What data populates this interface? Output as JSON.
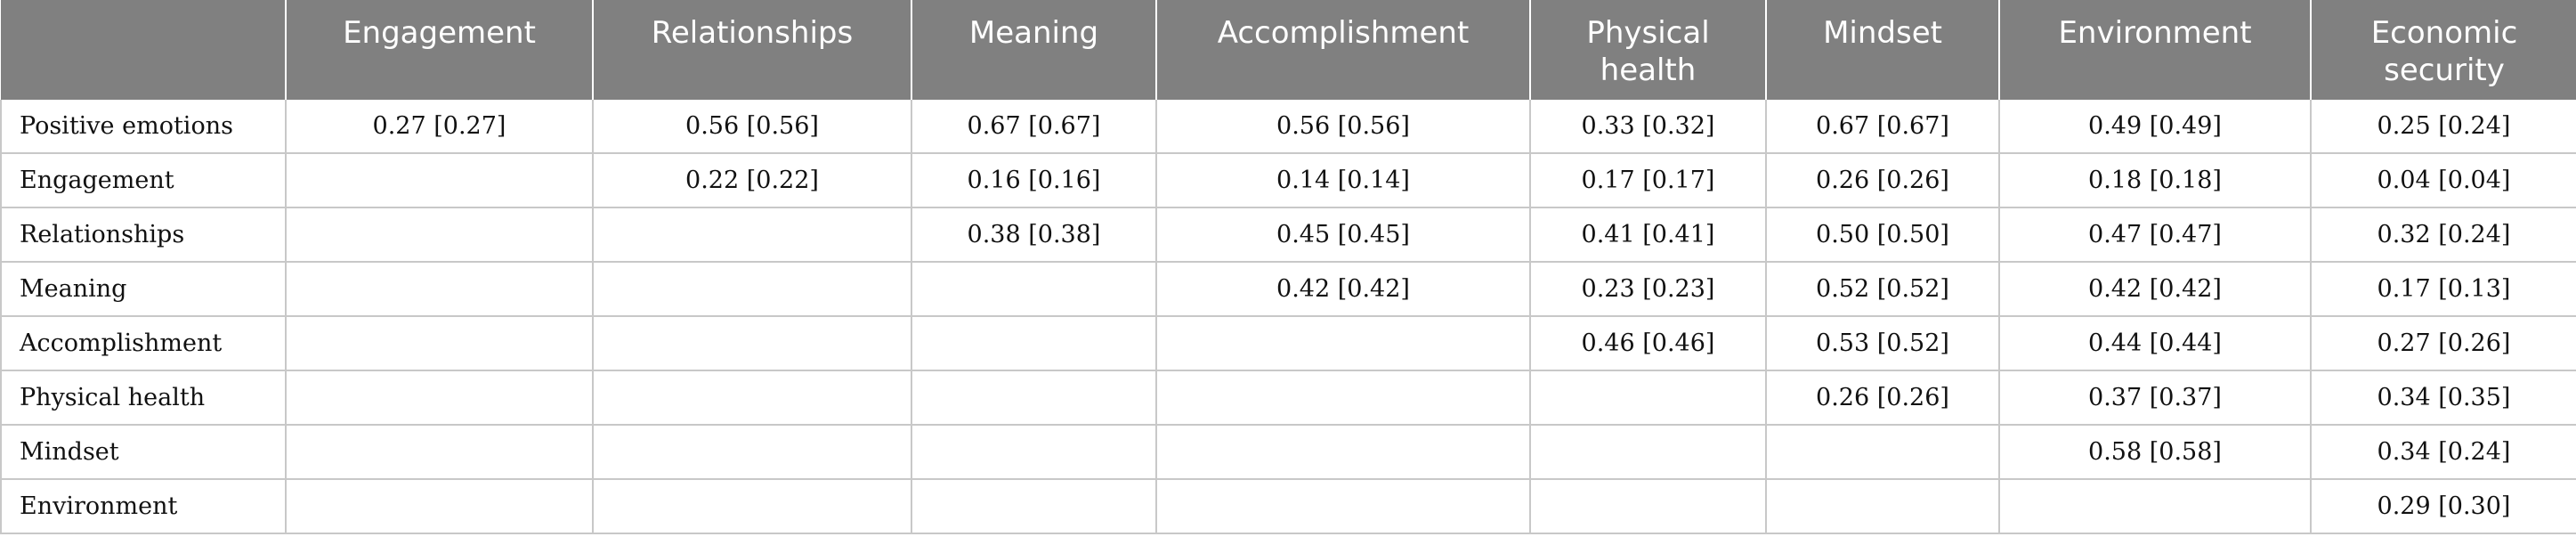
{
  "table": {
    "columns": [
      "",
      "Engagement",
      "Relationships",
      "Meaning",
      "Accomplishment",
      "Physical health",
      "Mindset",
      "Environment",
      "Economic security"
    ],
    "rows": [
      {
        "label": "Positive emotions",
        "cells": [
          "0.27 [0.27]",
          "0.56 [0.56]",
          "0.67 [0.67]",
          "0.56 [0.56]",
          "0.33 [0.32]",
          "0.67 [0.67]",
          "0.49 [0.49]",
          "0.25 [0.24]"
        ]
      },
      {
        "label": "Engagement",
        "cells": [
          "",
          "0.22 [0.22]",
          "0.16 [0.16]",
          "0.14 [0.14]",
          "0.17 [0.17]",
          "0.26 [0.26]",
          "0.18 [0.18]",
          "0.04 [0.04]"
        ]
      },
      {
        "label": "Relationships",
        "cells": [
          "",
          "",
          "0.38 [0.38]",
          "0.45 [0.45]",
          "0.41 [0.41]",
          "0.50 [0.50]",
          "0.47 [0.47]",
          "0.32 [0.24]"
        ]
      },
      {
        "label": "Meaning",
        "cells": [
          "",
          "",
          "",
          "0.42 [0.42]",
          "0.23 [0.23]",
          "0.52 [0.52]",
          "0.42 [0.42]",
          "0.17 [0.13]"
        ]
      },
      {
        "label": "Accomplishment",
        "cells": [
          "",
          "",
          "",
          "",
          "0.46 [0.46]",
          "0.53 [0.52]",
          "0.44 [0.44]",
          "0.27 [0.26]"
        ]
      },
      {
        "label": "Physical health",
        "cells": [
          "",
          "",
          "",
          "",
          "",
          "0.26 [0.26]",
          "0.37 [0.37]",
          "0.34 [0.35]"
        ]
      },
      {
        "label": "Mindset",
        "cells": [
          "",
          "",
          "",
          "",
          "",
          "",
          "0.58 [0.58]",
          "0.34 [0.24]"
        ]
      },
      {
        "label": "Environment",
        "cells": [
          "",
          "",
          "",
          "",
          "",
          "",
          "",
          "0.29 [0.30]"
        ]
      }
    ]
  }
}
